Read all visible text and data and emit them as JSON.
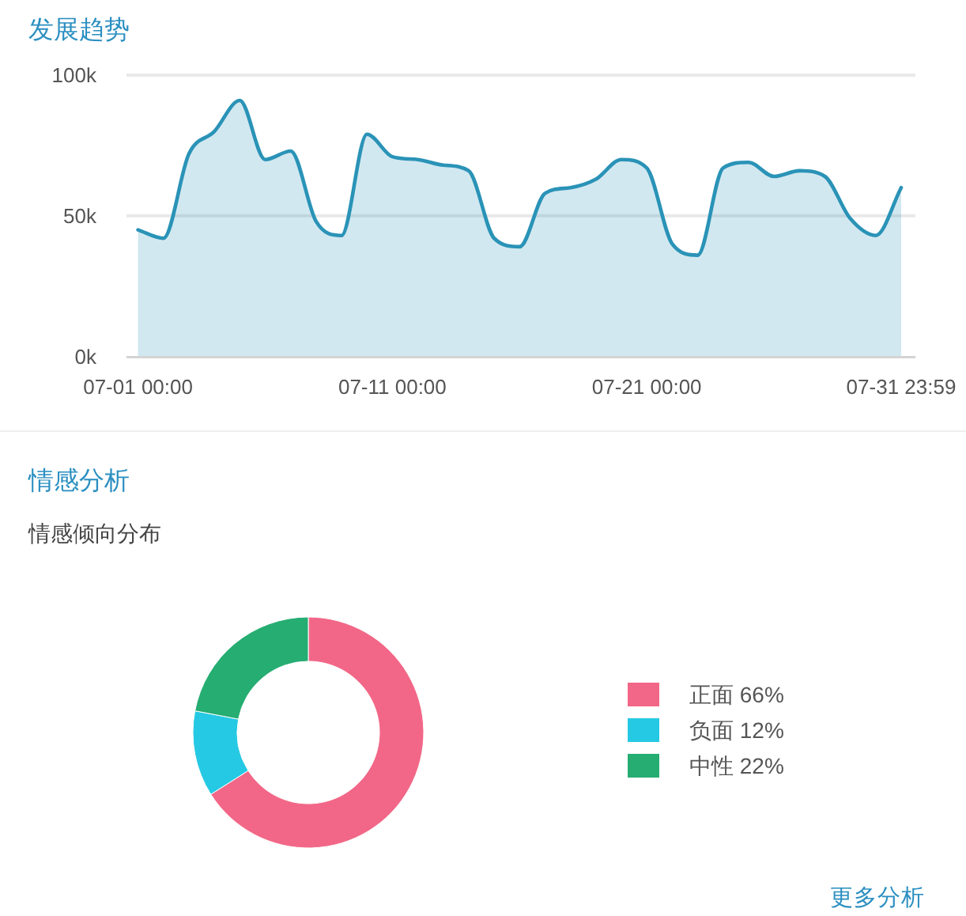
{
  "chart_data": [
    {
      "type": "area",
      "title": "发展趋势",
      "categories": [
        "07-01 00:00",
        null,
        null,
        null,
        null,
        null,
        null,
        null,
        null,
        null,
        "07-11 00:00",
        null,
        null,
        null,
        null,
        null,
        null,
        null,
        null,
        null,
        "07-21 00:00",
        null,
        null,
        null,
        null,
        null,
        null,
        null,
        null,
        null,
        "07-31 23:59"
      ],
      "values": [
        45000,
        42000,
        72000,
        80000,
        91000,
        70000,
        73000,
        48000,
        43000,
        79000,
        71000,
        70000,
        68000,
        66000,
        42000,
        39000,
        58000,
        60000,
        63000,
        70000,
        67000,
        40000,
        36000,
        67000,
        69000,
        64000,
        66000,
        64000,
        49000,
        43000,
        60000
      ],
      "color": "#2a93b7",
      "ylim": [
        0,
        100000
      ],
      "yticks": [
        {
          "value": 0,
          "label": "0k"
        },
        {
          "value": 50000,
          "label": "50k"
        },
        {
          "value": 100000,
          "label": "100k"
        }
      ],
      "grid": "y"
    },
    {
      "type": "donut",
      "title": "情感分析",
      "subtitle": "情感倾向分布",
      "categories": [
        "正面",
        "负面",
        "中性"
      ],
      "values": [
        66,
        12,
        22
      ],
      "colors": [
        "#f26787",
        "#25c9e3",
        "#26ad72"
      ],
      "value_labels": [
        "66%",
        "12%",
        "22%"
      ],
      "legend": "right",
      "annotations": [
        "更多分析"
      ]
    }
  ]
}
